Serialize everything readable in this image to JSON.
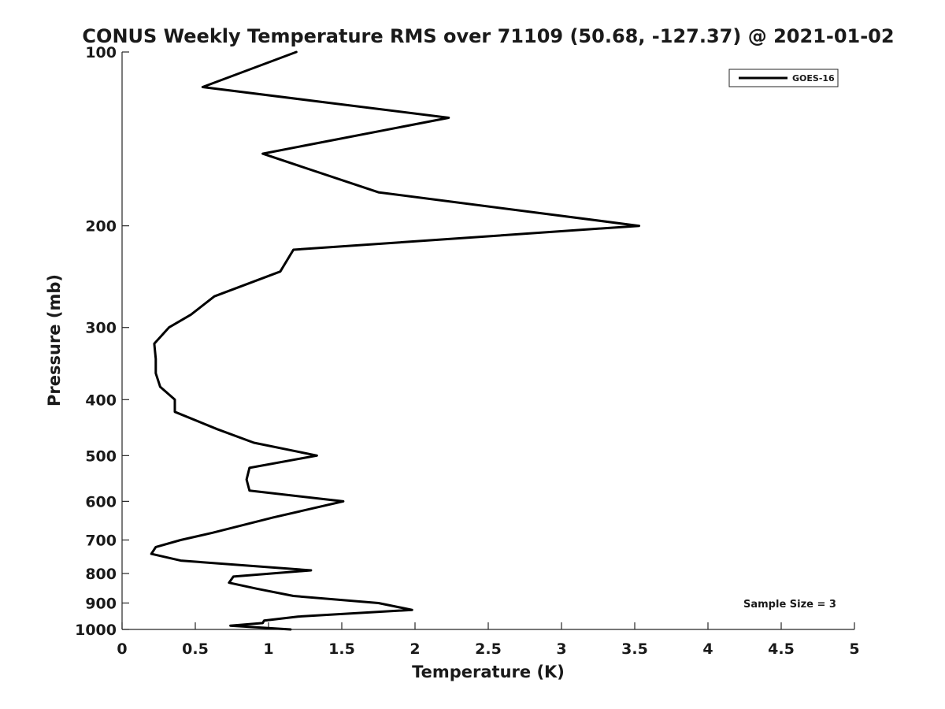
{
  "chart_data": {
    "type": "line",
    "title": "CONUS Weekly Temperature RMS over 71109 (50.68, -127.37) @ 2021-01-02",
    "xlabel": "Temperature (K)",
    "ylabel": "Pressure (mb)",
    "xlim": [
      0,
      5
    ],
    "ylim": [
      100,
      1000
    ],
    "y_scale": "log",
    "y_reversed": true,
    "grid": false,
    "legend_placement": "top-right",
    "x_ticks": [
      "0",
      "0.5",
      "1",
      "1.5",
      "2",
      "2.5",
      "3",
      "3.5",
      "4",
      "4.5",
      "5"
    ],
    "y_ticks": [
      "100",
      "200",
      "300",
      "400",
      "500",
      "600",
      "700",
      "800",
      "900",
      "1000"
    ],
    "annotation": "Sample Size = 3",
    "series": [
      {
        "name": "GOES-16",
        "color": "#000000",
        "x": [
          1.19,
          0.55,
          2.23,
          0.96,
          1.75,
          3.53,
          1.17,
          1.08,
          0.63,
          0.47,
          0.32,
          0.22,
          0.23,
          0.23,
          0.26,
          0.36,
          0.36,
          0.65,
          0.9,
          1.33,
          0.87,
          0.85,
          0.87,
          1.51,
          1.03,
          0.62,
          0.4,
          0.23,
          0.2,
          0.4,
          1.29,
          0.76,
          0.73,
          0.92,
          1.17,
          1.75,
          1.98,
          1.2,
          0.97,
          0.96,
          0.74,
          1.15
        ],
        "y": [
          100,
          115,
          130,
          150,
          175,
          200,
          220,
          240,
          265,
          285,
          300,
          320,
          340,
          360,
          380,
          400,
          420,
          450,
          475,
          500,
          525,
          550,
          575,
          600,
          640,
          680,
          700,
          720,
          740,
          760,
          790,
          810,
          830,
          850,
          875,
          900,
          925,
          950,
          965,
          975,
          985,
          1000
        ]
      }
    ]
  }
}
